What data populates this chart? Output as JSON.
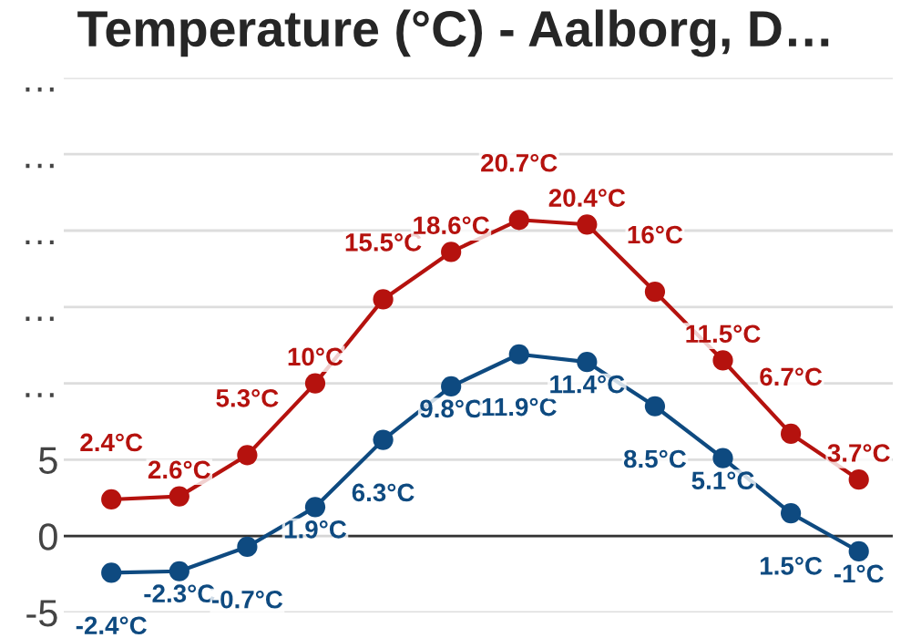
{
  "chart_data": {
    "type": "line",
    "title": "Temperature (°C) - Aalborg, D…",
    "categories": [
      null,
      null,
      null,
      null,
      null,
      null,
      null,
      null,
      null,
      null,
      null,
      null
    ],
    "series": [
      {
        "color": "#b5120e",
        "values": [
          2.4,
          2.6,
          5.3,
          10,
          15.5,
          18.6,
          20.7,
          20.4,
          16,
          11.5,
          6.7,
          3.7
        ],
        "value_labels": [
          "2.4°C",
          "2.6°C",
          "5.3°C",
          "10°C",
          "15.5°C",
          "18.6°C",
          "20.7°C",
          "20.4°C",
          "16°C",
          "11.5°C",
          "6.7°C",
          "3.7°C"
        ]
      },
      {
        "color": "#0e4a80",
        "values": [
          -2.4,
          -2.3,
          -0.7,
          1.9,
          6.3,
          9.8,
          11.9,
          11.4,
          8.5,
          5.1,
          1.5,
          -1
        ],
        "value_labels": [
          "-2.4°C",
          "-2.3°C",
          "-0.7°C",
          "1.9°C",
          "6.3°C",
          "9.8°C",
          "11.9°C",
          "11.4°C",
          "8.5°C",
          "5.1°C",
          "1.5°C",
          "-1°C"
        ]
      }
    ],
    "ylim": [
      -5,
      30
    ],
    "yticks": [
      -5,
      0,
      5,
      {
        "value": 10,
        "label": "…"
      },
      {
        "value": 15,
        "label": "…"
      },
      {
        "value": 20,
        "label": "…"
      },
      {
        "value": 25,
        "label": "…"
      },
      {
        "value": 30,
        "label": "…"
      }
    ],
    "ref_lines": [
      {
        "axis": "y",
        "value": 0,
        "color": "#333333"
      }
    ],
    "grid": "y",
    "marker": "circle",
    "line_style": "solid",
    "legend": false
  }
}
